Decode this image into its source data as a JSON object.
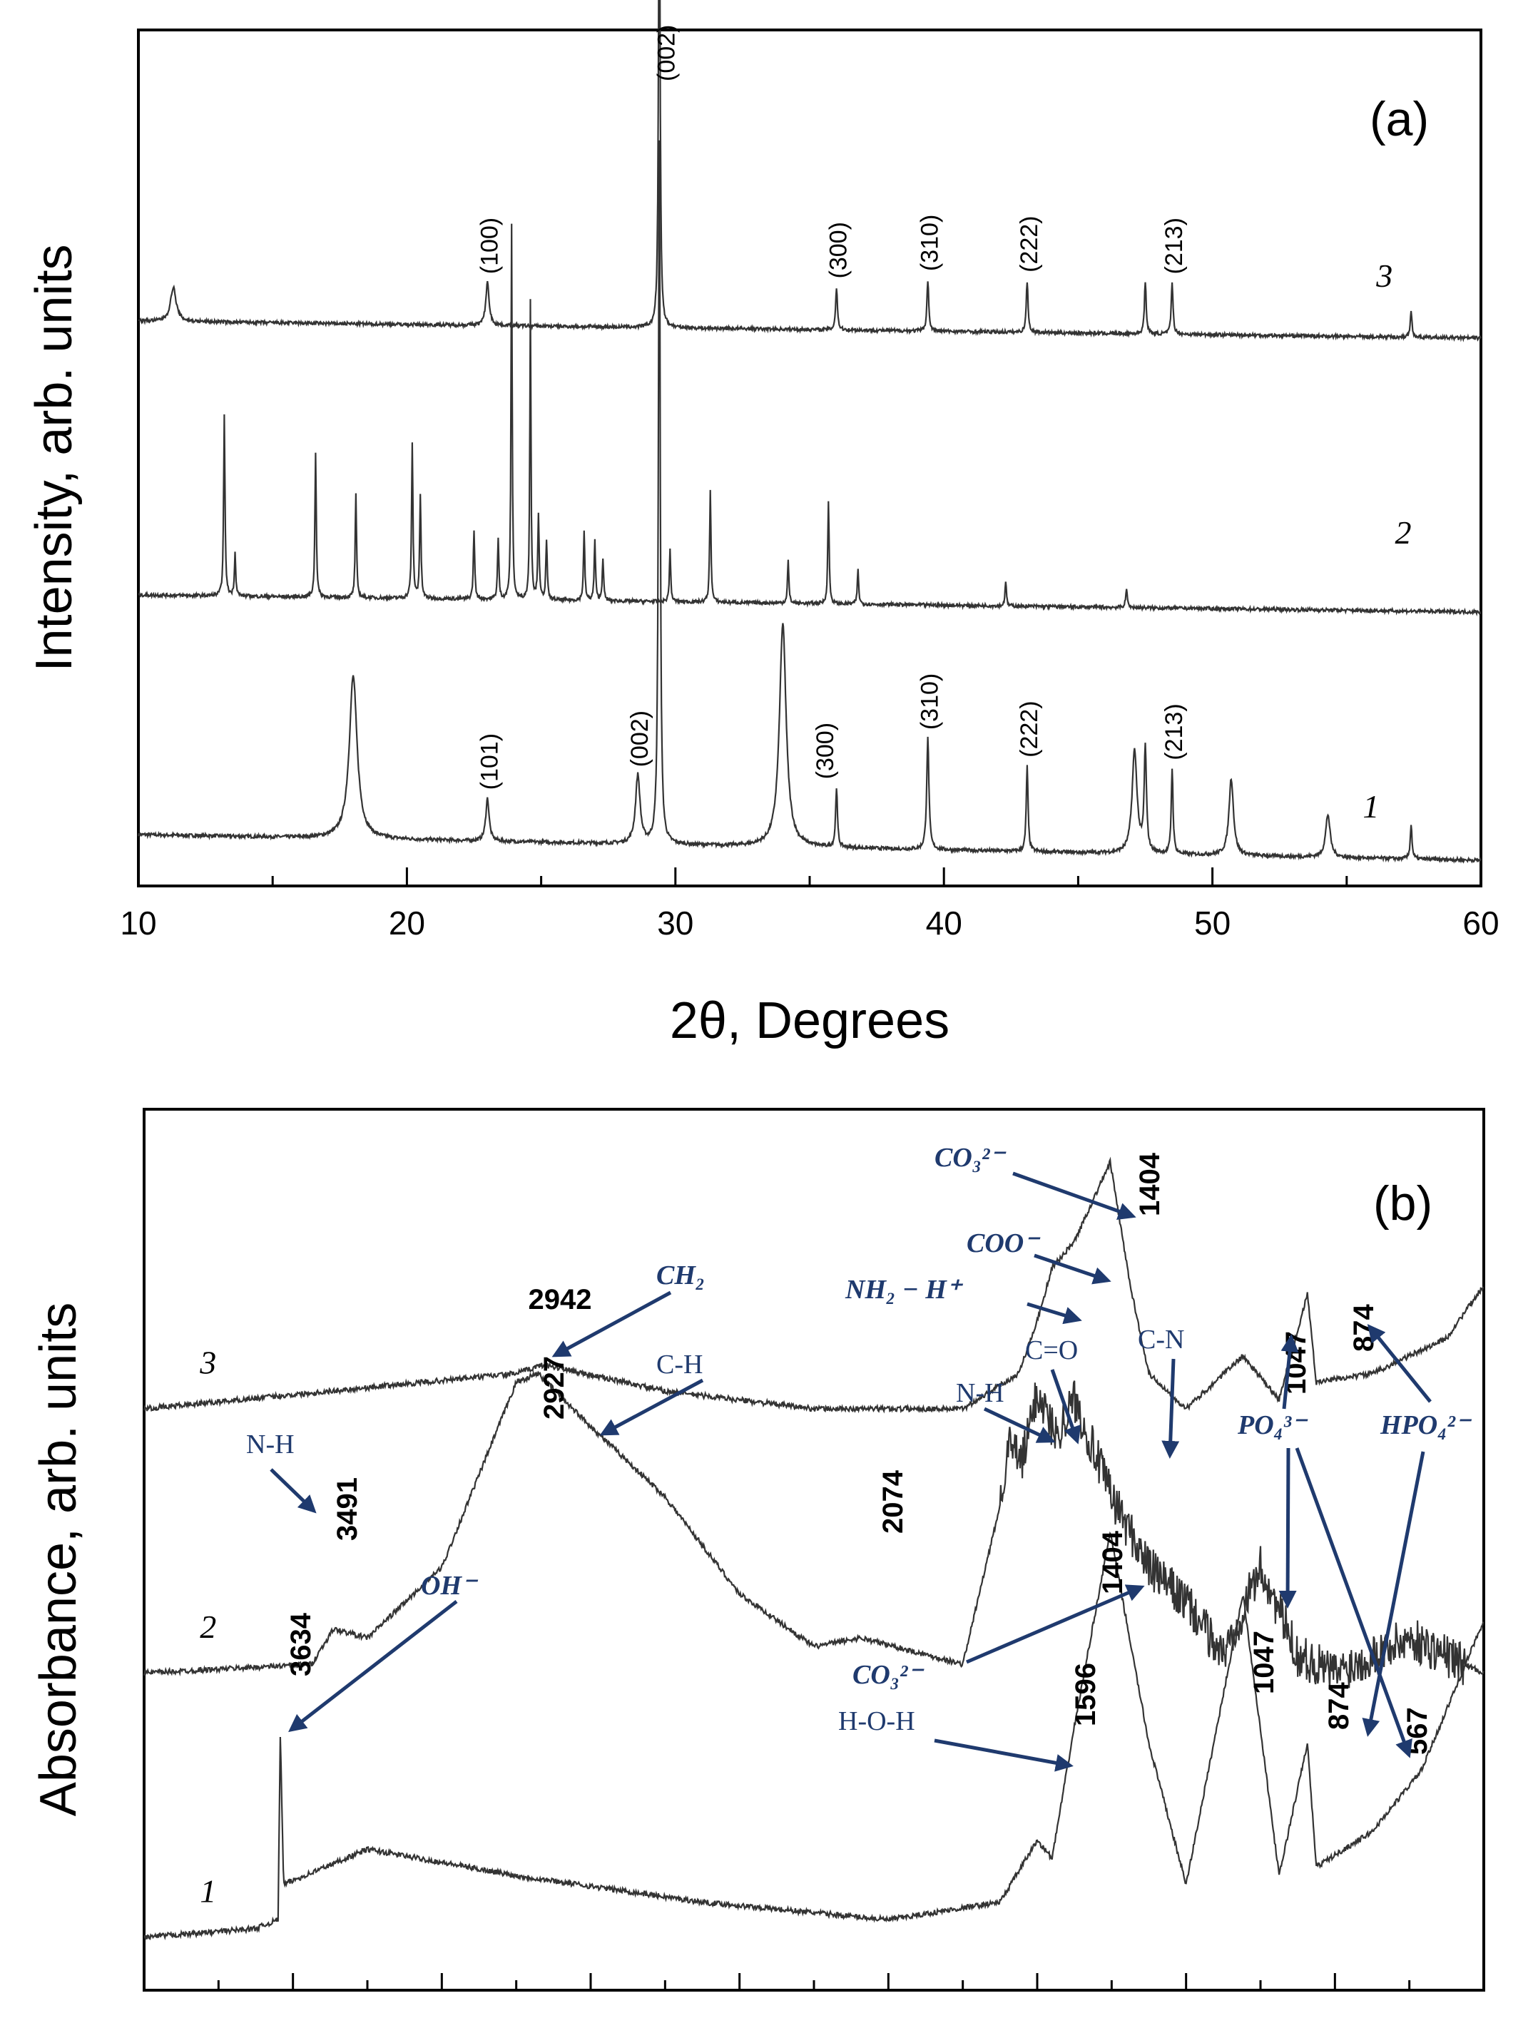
{
  "chart_data": [
    {
      "type": "line",
      "panel_label": "(a)",
      "title": "",
      "xlabel": "2θ, Degrees",
      "ylabel": "Intensity, arb. units",
      "xlim": [
        10,
        60
      ],
      "x_ticks": [
        10,
        20,
        30,
        40,
        50,
        60
      ],
      "x_tick_labels": [
        "10",
        "20",
        "30",
        "40",
        "50",
        "60"
      ],
      "series": [
        {
          "name": "1",
          "baseline": 0.06,
          "slope": -0.03,
          "peaks": [
            [
              18.0,
              0.19,
              0.35
            ],
            [
              23.0,
              0.05,
              0.15
            ],
            [
              28.6,
              0.08,
              0.2
            ],
            [
              29.4,
              0.82,
              0.08
            ],
            [
              34.0,
              0.26,
              0.3
            ],
            [
              36.0,
              0.07,
              0.08
            ],
            [
              39.4,
              0.13,
              0.1
            ],
            [
              43.1,
              0.1,
              0.08
            ],
            [
              47.1,
              0.12,
              0.22
            ],
            [
              47.5,
              0.12,
              0.1
            ],
            [
              48.5,
              0.1,
              0.08
            ],
            [
              50.7,
              0.09,
              0.2
            ],
            [
              54.3,
              0.05,
              0.2
            ],
            [
              57.4,
              0.04,
              0.08
            ]
          ],
          "hkl": [
            {
              "x": 23.0,
              "label": "(101)"
            },
            {
              "x": 28.6,
              "label": "(002)"
            },
            {
              "x": 35.5,
              "label": "(300)"
            },
            {
              "x": 39.4,
              "label": "(310)"
            },
            {
              "x": 43.1,
              "label": "(222)"
            },
            {
              "x": 48.5,
              "label": "(213)"
            }
          ]
        },
        {
          "name": "2",
          "baseline": 0.34,
          "slope": -0.02,
          "peaks": [
            [
              13.2,
              0.21,
              0.06
            ],
            [
              13.6,
              0.05,
              0.06
            ],
            [
              16.6,
              0.17,
              0.06
            ],
            [
              18.1,
              0.12,
              0.06
            ],
            [
              20.2,
              0.18,
              0.06
            ],
            [
              20.5,
              0.12,
              0.06
            ],
            [
              22.5,
              0.08,
              0.06
            ],
            [
              23.4,
              0.07,
              0.06
            ],
            [
              23.9,
              0.44,
              0.05
            ],
            [
              24.6,
              0.35,
              0.05
            ],
            [
              24.9,
              0.1,
              0.06
            ],
            [
              25.2,
              0.07,
              0.06
            ],
            [
              26.6,
              0.08,
              0.06
            ],
            [
              27.0,
              0.07,
              0.06
            ],
            [
              27.3,
              0.05,
              0.06
            ],
            [
              29.8,
              0.06,
              0.06
            ],
            [
              31.3,
              0.13,
              0.06
            ],
            [
              34.2,
              0.05,
              0.06
            ],
            [
              35.7,
              0.12,
              0.06
            ],
            [
              36.8,
              0.04,
              0.06
            ],
            [
              42.3,
              0.03,
              0.06
            ],
            [
              46.8,
              0.02,
              0.08
            ]
          ],
          "hkl": []
        },
        {
          "name": "3",
          "baseline": 0.66,
          "slope": -0.02,
          "peaks": [
            [
              11.3,
              0.04,
              0.25
            ],
            [
              23.0,
              0.05,
              0.15
            ],
            [
              29.4,
              0.58,
              0.07
            ],
            [
              36.0,
              0.05,
              0.08
            ],
            [
              39.4,
              0.06,
              0.08
            ],
            [
              43.1,
              0.06,
              0.08
            ],
            [
              47.5,
              0.06,
              0.08
            ],
            [
              48.5,
              0.06,
              0.08
            ],
            [
              57.4,
              0.03,
              0.08
            ]
          ],
          "hkl": [
            {
              "x": 23.0,
              "label": "(100)"
            },
            {
              "x": 29.6,
              "label": "(002)"
            },
            {
              "x": 36.0,
              "label": "(300)"
            },
            {
              "x": 39.4,
              "label": "(310)"
            },
            {
              "x": 43.1,
              "label": "(222)"
            },
            {
              "x": 48.5,
              "label": "(213)"
            }
          ]
        }
      ]
    },
    {
      "type": "line",
      "panel_label": "(b)",
      "title": "",
      "xlabel": "",
      "ylabel": "Absorbance, arb. units",
      "xlim": [
        4000,
        400
      ],
      "x_ticks": [
        4000,
        3800,
        3600,
        3400,
        3200,
        3000,
        2800,
        2600,
        2400,
        2200,
        2000,
        1800,
        1600,
        1400,
        1200,
        1000,
        800,
        600,
        400
      ],
      "series": [
        {
          "name": "1",
          "baseline": 0.06,
          "points": [
            [
              4000,
              0.06
            ],
            [
              3700,
              0.07
            ],
            [
              3640,
              0.08
            ],
            [
              3634,
              0.29
            ],
            [
              3625,
              0.12
            ],
            [
              3400,
              0.16
            ],
            [
              3000,
              0.13
            ],
            [
              2500,
              0.1
            ],
            [
              2000,
              0.08
            ],
            [
              1700,
              0.1
            ],
            [
              1600,
              0.17
            ],
            [
              1560,
              0.15
            ],
            [
              1500,
              0.3
            ],
            [
              1404,
              0.52
            ],
            [
              1300,
              0.28
            ],
            [
              1200,
              0.12
            ],
            [
              1047,
              0.45
            ],
            [
              950,
              0.13
            ],
            [
              874,
              0.28
            ],
            [
              850,
              0.14
            ],
            [
              700,
              0.18
            ],
            [
              567,
              0.25
            ],
            [
              400,
              0.42
            ]
          ]
        },
        {
          "name": "2",
          "baseline": 0.36,
          "points": [
            [
              4000,
              0.36
            ],
            [
              3550,
              0.37
            ],
            [
              3491,
              0.41
            ],
            [
              3400,
              0.4
            ],
            [
              3200,
              0.48
            ],
            [
              3000,
              0.69
            ],
            [
              2942,
              0.7
            ],
            [
              2800,
              0.64
            ],
            [
              2600,
              0.56
            ],
            [
              2400,
              0.45
            ],
            [
              2200,
              0.39
            ],
            [
              2074,
              0.4
            ],
            [
              1800,
              0.37
            ],
            [
              1700,
              0.55
            ],
            [
              1680,
              0.62
            ],
            [
              1640,
              0.6
            ],
            [
              1600,
              0.68
            ],
            [
              1550,
              0.63
            ],
            [
              1500,
              0.67
            ],
            [
              1400,
              0.56
            ],
            [
              1300,
              0.48
            ],
            [
              1200,
              0.44
            ],
            [
              1100,
              0.38
            ],
            [
              1000,
              0.48
            ],
            [
              900,
              0.38
            ],
            [
              800,
              0.36
            ],
            [
              600,
              0.4
            ],
            [
              400,
              0.36
            ]
          ]
        },
        {
          "name": "3",
          "baseline": 0.66,
          "points": [
            [
              4000,
              0.66
            ],
            [
              3500,
              0.68
            ],
            [
              3000,
              0.7
            ],
            [
              2927,
              0.71
            ],
            [
              2600,
              0.68
            ],
            [
              2200,
              0.66
            ],
            [
              1800,
              0.66
            ],
            [
              1650,
              0.7
            ],
            [
              1600,
              0.76
            ],
            [
              1560,
              0.82
            ],
            [
              1500,
              0.85
            ],
            [
              1404,
              0.94
            ],
            [
              1350,
              0.8
            ],
            [
              1300,
              0.7
            ],
            [
              1200,
              0.66
            ],
            [
              1047,
              0.72
            ],
            [
              950,
              0.67
            ],
            [
              874,
              0.79
            ],
            [
              850,
              0.69
            ],
            [
              700,
              0.7
            ],
            [
              500,
              0.74
            ],
            [
              400,
              0.8
            ]
          ]
        }
      ],
      "band_labels": [
        "3634",
        "3491",
        "2942",
        "2927",
        "2074",
        "1596",
        "1404",
        "1404",
        "1047",
        "1047",
        "874",
        "874",
        "567"
      ],
      "group_labels": [
        "OH⁻",
        "N-H",
        "N-H",
        "C-H",
        "CH₂",
        "C=O",
        "C-N",
        "COO⁻",
        "NH₂ − H⁺",
        "CO₃²⁻",
        "CO₃²⁻",
        "PO₄³⁻",
        "HPO₄²⁻",
        "H-O-H"
      ]
    }
  ]
}
